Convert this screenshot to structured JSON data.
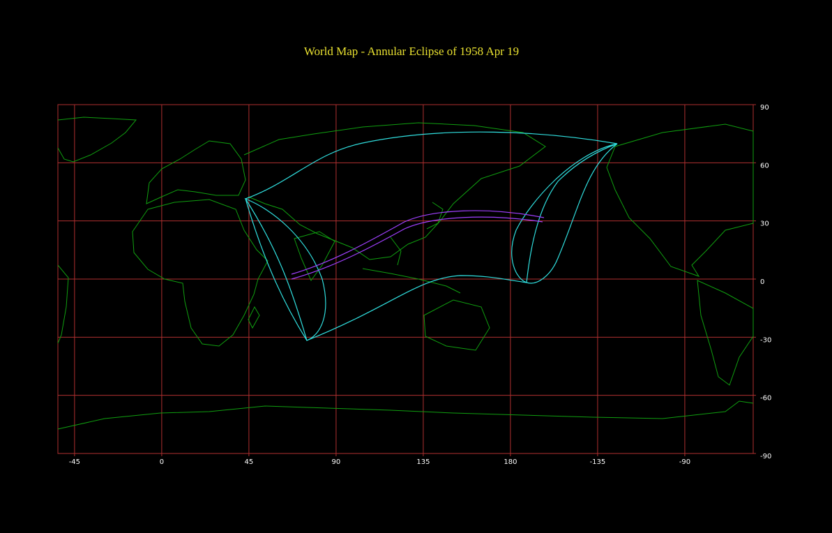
{
  "map": {
    "title": "World Map  -  Annular  Eclipse  of  1958 Apr 19",
    "lonlim": [
      -53.6,
      305.3
    ],
    "latlim": [
      -90,
      90
    ],
    "lon_ticks": [
      -45,
      0,
      45,
      90,
      135,
      180,
      {
        "value": 225,
        "label": "-135"
      },
      {
        "value": 270,
        "label": "-90"
      }
    ],
    "lat_ticks": [
      90,
      60,
      30,
      0,
      -30,
      -60,
      -90
    ]
  }
}
